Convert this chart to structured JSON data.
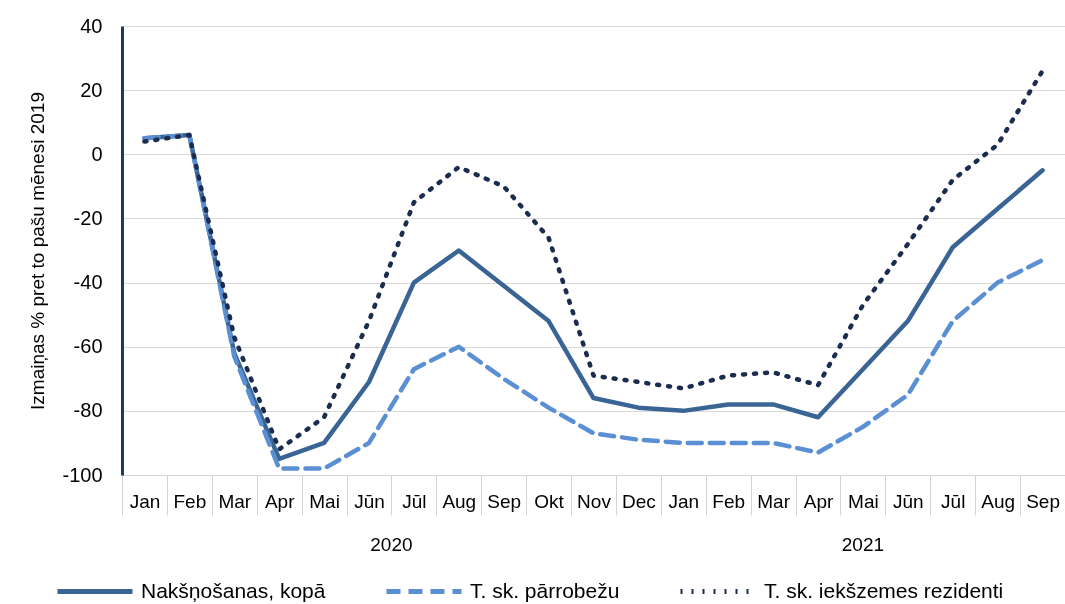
{
  "chart_data": {
    "type": "line",
    "ylabel": "Izmaiņas % pret to pašu mēnesi 2019",
    "categories": [
      "Jan",
      "Feb",
      "Mar",
      "Apr",
      "Mai",
      "Jūn",
      "Jūl",
      "Aug",
      "Sep",
      "Okt",
      "Nov",
      "Dec",
      "Jan",
      "Feb",
      "Mar",
      "Apr",
      "Mai",
      "Jūn",
      "Jūl",
      "Aug",
      "Sep"
    ],
    "annotations": [
      "2020",
      "2021"
    ],
    "ylim": [
      -100,
      40
    ],
    "yticks": [
      -100,
      -80,
      -60,
      -40,
      -20,
      0,
      20,
      40
    ],
    "grid": "y",
    "legend": "bottom",
    "series": [
      {
        "name": "Nakšņošanas, kopā",
        "color": "#3a6494",
        "line_style": "solid",
        "values": [
          5,
          6,
          -62,
          -95,
          -90,
          -71,
          -40,
          -30,
          -41,
          -52,
          -76,
          -79,
          -80,
          -78,
          -78,
          -82,
          -67,
          -52,
          -29,
          -17,
          -5
        ]
      },
      {
        "name": "T. sk. pārrobežu",
        "color": "#5b8fd4",
        "line_style": "dashed",
        "values": [
          5,
          6,
          -63,
          -98,
          -98,
          -90,
          -67,
          -60,
          -70,
          -79,
          -87,
          -89,
          -90,
          -90,
          -90,
          -93,
          -85,
          -75,
          -52,
          -40,
          -33
        ]
      },
      {
        "name": "T. sk. iekšzemes rezidenti",
        "color": "#1b2d4f",
        "line_style": "dotted",
        "values": [
          4,
          6,
          -57,
          -92,
          -82,
          -52,
          -15,
          -4,
          -10,
          -26,
          -69,
          -71,
          -73,
          -69,
          -68,
          -72,
          -47,
          -28,
          -8,
          3,
          26
        ]
      }
    ]
  }
}
